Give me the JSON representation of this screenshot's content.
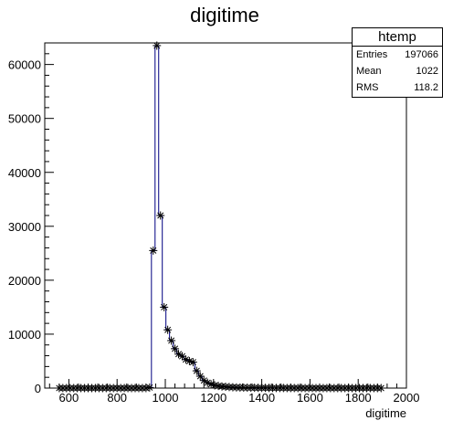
{
  "chart_data": {
    "type": "histogram",
    "title": "digitime",
    "xlabel": "digitime",
    "ylabel": "",
    "xlim": [
      500,
      2000
    ],
    "ylim": [
      0,
      64000
    ],
    "xticks": [
      600,
      800,
      1000,
      1200,
      1400,
      1600,
      1800,
      2000
    ],
    "yticks": [
      0,
      10000,
      20000,
      30000,
      40000,
      50000,
      60000
    ],
    "grid": false,
    "line_color": "#000080",
    "marker": "asterisk",
    "bin_width": 15,
    "bins": [
      {
        "x": 560,
        "y": 0
      },
      {
        "x": 575,
        "y": 0
      },
      {
        "x": 590,
        "y": 0
      },
      {
        "x": 605,
        "y": 0
      },
      {
        "x": 620,
        "y": 0
      },
      {
        "x": 635,
        "y": 0
      },
      {
        "x": 650,
        "y": 0
      },
      {
        "x": 665,
        "y": 0
      },
      {
        "x": 680,
        "y": 0
      },
      {
        "x": 695,
        "y": 0
      },
      {
        "x": 710,
        "y": 0
      },
      {
        "x": 725,
        "y": 0
      },
      {
        "x": 740,
        "y": 0
      },
      {
        "x": 755,
        "y": 0
      },
      {
        "x": 770,
        "y": 0
      },
      {
        "x": 785,
        "y": 0
      },
      {
        "x": 800,
        "y": 0
      },
      {
        "x": 815,
        "y": 0
      },
      {
        "x": 830,
        "y": 0
      },
      {
        "x": 845,
        "y": 0
      },
      {
        "x": 860,
        "y": 0
      },
      {
        "x": 875,
        "y": 0
      },
      {
        "x": 890,
        "y": 0
      },
      {
        "x": 905,
        "y": 0
      },
      {
        "x": 920,
        "y": 0
      },
      {
        "x": 935,
        "y": 100
      },
      {
        "x": 950,
        "y": 25500
      },
      {
        "x": 965,
        "y": 63500
      },
      {
        "x": 980,
        "y": 32000
      },
      {
        "x": 995,
        "y": 15000
      },
      {
        "x": 1010,
        "y": 10800
      },
      {
        "x": 1025,
        "y": 8800
      },
      {
        "x": 1040,
        "y": 7300
      },
      {
        "x": 1055,
        "y": 6300
      },
      {
        "x": 1070,
        "y": 5900
      },
      {
        "x": 1085,
        "y": 5300
      },
      {
        "x": 1100,
        "y": 5000
      },
      {
        "x": 1115,
        "y": 4800
      },
      {
        "x": 1130,
        "y": 3200
      },
      {
        "x": 1145,
        "y": 2200
      },
      {
        "x": 1160,
        "y": 1400
      },
      {
        "x": 1175,
        "y": 1000
      },
      {
        "x": 1190,
        "y": 700
      },
      {
        "x": 1205,
        "y": 500
      },
      {
        "x": 1220,
        "y": 400
      },
      {
        "x": 1235,
        "y": 300
      },
      {
        "x": 1250,
        "y": 250
      },
      {
        "x": 1265,
        "y": 200
      },
      {
        "x": 1280,
        "y": 150
      },
      {
        "x": 1295,
        "y": 120
      },
      {
        "x": 1310,
        "y": 100
      },
      {
        "x": 1325,
        "y": 90
      },
      {
        "x": 1340,
        "y": 80
      },
      {
        "x": 1355,
        "y": 70
      },
      {
        "x": 1370,
        "y": 60
      },
      {
        "x": 1385,
        "y": 50
      },
      {
        "x": 1400,
        "y": 40
      },
      {
        "x": 1415,
        "y": 40
      },
      {
        "x": 1430,
        "y": 30
      },
      {
        "x": 1445,
        "y": 30
      },
      {
        "x": 1460,
        "y": 20
      },
      {
        "x": 1475,
        "y": 20
      },
      {
        "x": 1490,
        "y": 20
      },
      {
        "x": 1505,
        "y": 10
      },
      {
        "x": 1520,
        "y": 10
      },
      {
        "x": 1535,
        "y": 10
      },
      {
        "x": 1550,
        "y": 10
      },
      {
        "x": 1565,
        "y": 10
      },
      {
        "x": 1580,
        "y": 0
      },
      {
        "x": 1595,
        "y": 0
      },
      {
        "x": 1610,
        "y": 0
      },
      {
        "x": 1625,
        "y": 0
      },
      {
        "x": 1640,
        "y": 0
      },
      {
        "x": 1655,
        "y": 0
      },
      {
        "x": 1670,
        "y": 0
      },
      {
        "x": 1685,
        "y": 0
      },
      {
        "x": 1700,
        "y": 0
      },
      {
        "x": 1715,
        "y": 0
      },
      {
        "x": 1730,
        "y": 0
      },
      {
        "x": 1745,
        "y": 0
      },
      {
        "x": 1760,
        "y": 0
      },
      {
        "x": 1775,
        "y": 0
      },
      {
        "x": 1790,
        "y": 0
      },
      {
        "x": 1805,
        "y": 0
      },
      {
        "x": 1820,
        "y": 0
      },
      {
        "x": 1835,
        "y": 0
      },
      {
        "x": 1850,
        "y": 0
      },
      {
        "x": 1865,
        "y": 0
      },
      {
        "x": 1880,
        "y": 0
      },
      {
        "x": 1895,
        "y": 0
      }
    ],
    "stats": {
      "title": "htemp",
      "rows": [
        {
          "label": "Entries",
          "value": "197066"
        },
        {
          "label": "Mean",
          "value": "1022"
        },
        {
          "label": "RMS",
          "value": "118.2"
        }
      ]
    }
  }
}
